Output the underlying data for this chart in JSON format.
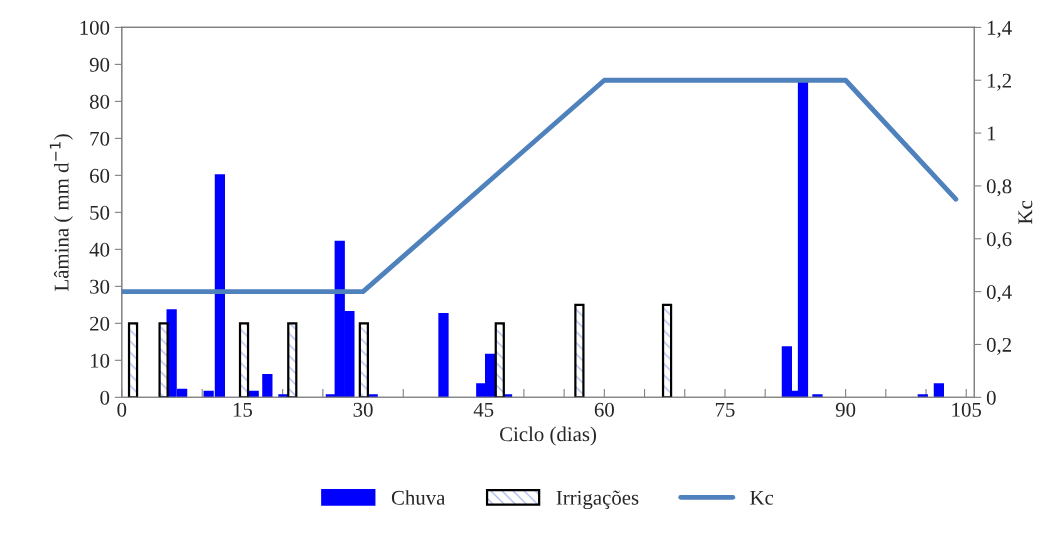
{
  "chart_data": {
    "type": "bar",
    "xlabel": "Ciclo (dias)",
    "ylabel": "Lâmina ( mm d$^{−1}$)",
    "y2label": "Kc",
    "series": [
      {
        "name": "Chuva",
        "color": "#0000ff",
        "x": [
          6.2,
          7.5,
          10.8,
          12.2,
          16.4,
          18.1,
          20.1,
          26,
          27.1,
          28.3,
          31.2,
          40,
          44.7,
          45.8,
          47.9,
          82.7,
          83.7,
          84.7,
          86.5,
          99.6,
          101.6
        ],
        "values": [
          23.5,
          2,
          1.5,
          60,
          1.5,
          6,
          0.5,
          0.5,
          42,
          23,
          0.5,
          22.5,
          3.5,
          11.5,
          0.5,
          13.5,
          1.5,
          86,
          0.5,
          0.5,
          3.5
        ]
      },
      {
        "name": "Irrigações",
        "color": "#000000",
        "x": [
          1.4,
          5.2,
          15.2,
          21.2,
          30.1,
          47,
          56.9,
          67.8
        ],
        "values": [
          20,
          20,
          20,
          20,
          20,
          20,
          25,
          25
        ]
      },
      {
        "name": "Kc",
        "type": "line",
        "axis": "y2",
        "color": "#4f81bd",
        "x": [
          0,
          30,
          60,
          90,
          103.7
        ],
        "values": [
          0.4,
          0.4,
          1.2,
          1.2,
          0.75
        ]
      }
    ],
    "xlim": [
      0,
      106
    ],
    "xticks": [
      0,
      {
        "value": 5,
        "label": null
      },
      {
        "value": 10,
        "label": null
      },
      15,
      {
        "value": 20,
        "label": null
      },
      {
        "value": 25,
        "label": null
      },
      30,
      {
        "value": 35,
        "label": null
      },
      {
        "value": 40,
        "label": null
      },
      45,
      {
        "value": 50,
        "label": null
      },
      {
        "value": 55,
        "label": null
      },
      60,
      {
        "value": 65,
        "label": null
      },
      {
        "value": 70,
        "label": null
      },
      75,
      {
        "value": 80,
        "label": null
      },
      {
        "value": 85,
        "label": null
      },
      90,
      {
        "value": 95,
        "label": null
      },
      {
        "value": 100,
        "label": null
      },
      105
    ],
    "ylim": [
      0,
      100
    ],
    "yticks": [
      0,
      10,
      20,
      30,
      40,
      50,
      60,
      70,
      80,
      90,
      100
    ],
    "y2lim": [
      0,
      1.4
    ],
    "y2ticks": [
      0,
      {
        "value": 0.2,
        "label": "0,2"
      },
      {
        "value": 0.4,
        "label": "0,4"
      },
      {
        "value": 0.6,
        "label": "0,6"
      },
      {
        "value": 0.8,
        "label": "0,8"
      },
      1,
      {
        "value": 1.2,
        "label": "1,2"
      },
      {
        "value": 1.4,
        "label": "1,4"
      }
    ],
    "grid": false,
    "legend": "bottom"
  }
}
